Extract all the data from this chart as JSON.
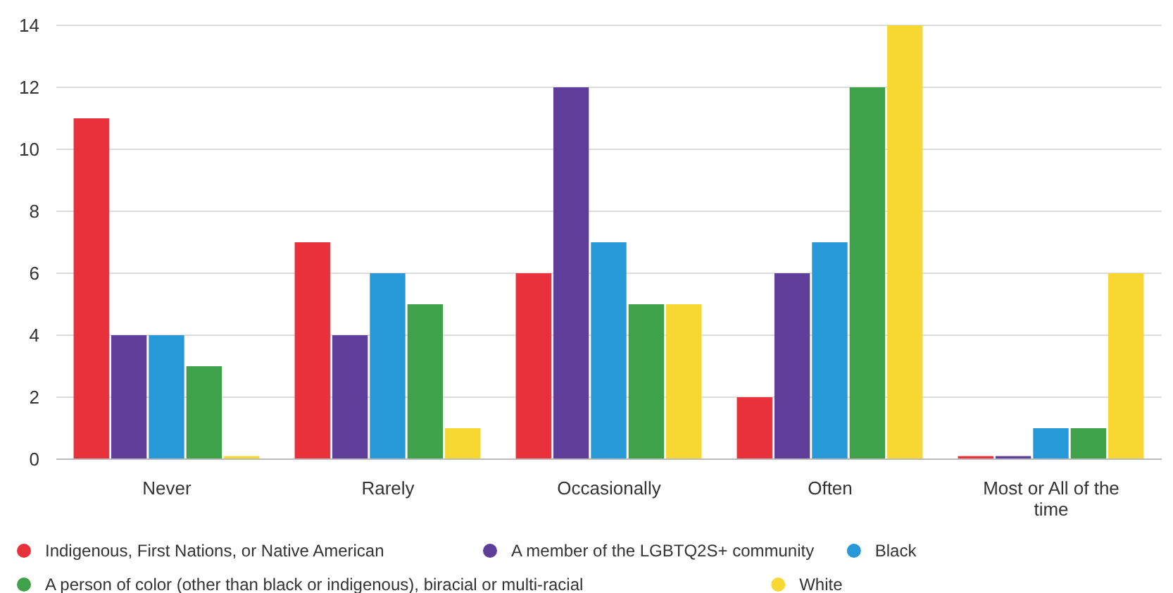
{
  "chart_data": {
    "type": "bar",
    "categories": [
      "Never",
      "Rarely",
      "Occasionally",
      "Often",
      "Most or All of the time"
    ],
    "series": [
      {
        "name": "Indigenous, First Nations, or Native American",
        "color": "#e8313a",
        "values": [
          11,
          7,
          6,
          2,
          0.1
        ]
      },
      {
        "name": "A member of the LGBTQ2S+ community",
        "color": "#5f3e99",
        "values": [
          4,
          4,
          12,
          6,
          0.1
        ]
      },
      {
        "name": "Black",
        "color": "#2899d8",
        "values": [
          4,
          6,
          7,
          7,
          1
        ]
      },
      {
        "name": "A person of color (other than black or indigenous), biracial or multi-racial",
        "color": "#3fa14a",
        "values": [
          3,
          5,
          5,
          12,
          1
        ]
      },
      {
        "name": "White",
        "color": "#f7d732",
        "values": [
          0.1,
          1,
          5,
          14,
          6
        ]
      }
    ],
    "ylim": [
      0,
      14
    ],
    "yticks": [
      0,
      2,
      4,
      6,
      8,
      10,
      12,
      14
    ],
    "grid": "y",
    "legend": "bottom"
  }
}
